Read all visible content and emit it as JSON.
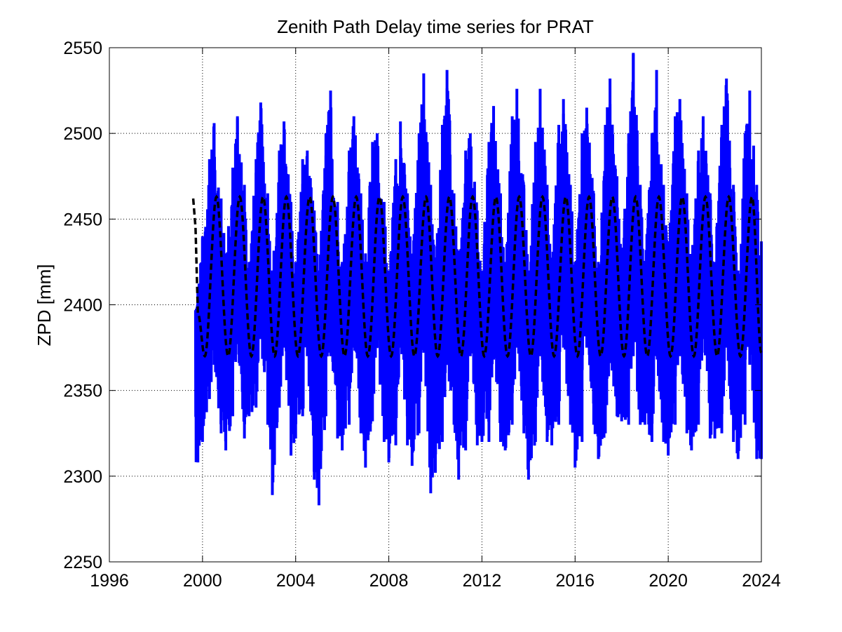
{
  "chart_data": {
    "type": "line",
    "title": "Zenith Path Delay time series for PRAT",
    "xlabel": "",
    "ylabel": "ZPD [mm]",
    "xlim": [
      1996,
      2024
    ],
    "ylim": [
      2250,
      2550
    ],
    "x_ticks": [
      1996,
      2000,
      2004,
      2008,
      2012,
      2016,
      2020,
      2024
    ],
    "y_ticks": [
      2250,
      2300,
      2350,
      2400,
      2450,
      2500,
      2550
    ],
    "grid": true,
    "legend": "none",
    "series": [
      {
        "kind": "observed",
        "color": "#0000ff",
        "x_range": [
          1999.7,
          2024.0
        ],
        "x": [
          1999.8,
          2000.0,
          2000.3,
          2000.5,
          2000.8,
          2001.0,
          2001.3,
          2001.5,
          2001.8,
          2002.0,
          2002.3,
          2002.5,
          2002.8,
          2003.0,
          2003.3,
          2003.5,
          2003.8,
          2004.0,
          2004.3,
          2004.5,
          2004.8,
          2005.0,
          2005.3,
          2005.5,
          2005.8,
          2006.0,
          2006.3,
          2006.5,
          2006.8,
          2007.0,
          2007.3,
          2007.5,
          2007.8,
          2008.0,
          2008.3,
          2008.5,
          2008.8,
          2009.0,
          2009.3,
          2009.5,
          2009.8,
          2010.0,
          2010.3,
          2010.5,
          2010.8,
          2011.0,
          2011.3,
          2011.5,
          2011.8,
          2012.0,
          2012.3,
          2012.5,
          2012.8,
          2013.0,
          2013.3,
          2013.5,
          2013.8,
          2014.0,
          2014.3,
          2014.5,
          2014.8,
          2015.0,
          2015.3,
          2015.5,
          2015.8,
          2016.0,
          2016.3,
          2016.5,
          2016.8,
          2017.0,
          2017.3,
          2017.5,
          2017.8,
          2018.0,
          2018.3,
          2018.5,
          2018.8,
          2019.0,
          2019.3,
          2019.5,
          2019.8,
          2020.0,
          2020.3,
          2020.5,
          2020.8,
          2021.0,
          2021.3,
          2021.5,
          2021.8,
          2022.0,
          2022.3,
          2022.5,
          2022.8,
          2023.0,
          2023.3,
          2023.5,
          2023.8,
          2024.0
        ],
        "max": [
          2410,
          2440,
          2485,
          2506,
          2462,
          2430,
          2480,
          2510,
          2470,
          2425,
          2485,
          2518,
          2465,
          2420,
          2490,
          2507,
          2460,
          2425,
          2485,
          2490,
          2455,
          2420,
          2500,
          2525,
          2460,
          2425,
          2490,
          2510,
          2465,
          2430,
          2495,
          2500,
          2460,
          2420,
          2485,
          2507,
          2465,
          2425,
          2500,
          2535,
          2470,
          2425,
          2505,
          2537,
          2465,
          2420,
          2490,
          2500,
          2455,
          2420,
          2495,
          2516,
          2465,
          2425,
          2510,
          2526,
          2470,
          2420,
          2495,
          2526,
          2470,
          2425,
          2505,
          2520,
          2470,
          2425,
          2500,
          2515,
          2465,
          2425,
          2505,
          2532,
          2475,
          2425,
          2500,
          2547,
          2470,
          2420,
          2500,
          2537,
          2470,
          2425,
          2510,
          2520,
          2465,
          2425,
          2490,
          2510,
          2465,
          2425,
          2505,
          2532,
          2470,
          2420,
          2500,
          2525,
          2470,
          2437
        ],
        "min": [
          2308,
          2320,
          2345,
          2365,
          2325,
          2315,
          2335,
          2380,
          2322,
          2335,
          2340,
          2380,
          2330,
          2289,
          2340,
          2375,
          2312,
          2322,
          2335,
          2370,
          2298,
          2283,
          2335,
          2370,
          2322,
          2315,
          2330,
          2375,
          2325,
          2305,
          2332,
          2375,
          2320,
          2308,
          2318,
          2375,
          2318,
          2306,
          2325,
          2372,
          2290,
          2302,
          2320,
          2366,
          2330,
          2298,
          2315,
          2370,
          2318,
          2320,
          2320,
          2368,
          2320,
          2315,
          2330,
          2375,
          2325,
          2298,
          2320,
          2370,
          2320,
          2318,
          2330,
          2375,
          2330,
          2305,
          2320,
          2375,
          2330,
          2310,
          2325,
          2370,
          2335,
          2332,
          2330,
          2370,
          2330,
          2330,
          2320,
          2370,
          2320,
          2312,
          2330,
          2370,
          2325,
          2315,
          2330,
          2380,
          2322,
          2322,
          2325,
          2375,
          2320,
          2310,
          2330,
          2365,
          2310,
          2310
        ]
      },
      {
        "kind": "model",
        "color": "#000000",
        "style": "dashed",
        "x_range": [
          1999.6,
          2024.0
        ],
        "x": [
          1999.6,
          1999.7,
          1999.8,
          2000.1,
          2000.6,
          2001.1,
          2001.6,
          2002.1,
          2002.6,
          2003.1,
          2003.6,
          2004.1,
          2004.6,
          2005.1,
          2005.6,
          2006.1,
          2006.6,
          2007.1,
          2007.6,
          2008.1,
          2008.6,
          2009.1,
          2009.6,
          2010.1,
          2010.6,
          2011.1,
          2011.6,
          2012.1,
          2012.6,
          2013.1,
          2013.6,
          2014.1,
          2014.6,
          2015.1,
          2015.6,
          2016.1,
          2016.6,
          2017.1,
          2017.6,
          2018.1,
          2018.6,
          2019.1,
          2019.6,
          2020.1,
          2020.6,
          2021.1,
          2021.6,
          2022.1,
          2022.6,
          2023.1,
          2023.6,
          2024.0
        ],
        "y": [
          2462,
          2445,
          2395,
          2370,
          2463,
          2370,
          2463,
          2370,
          2463,
          2370,
          2463,
          2370,
          2463,
          2370,
          2463,
          2370,
          2463,
          2370,
          2463,
          2370,
          2463,
          2370,
          2463,
          2370,
          2463,
          2370,
          2463,
          2370,
          2463,
          2370,
          2463,
          2370,
          2463,
          2370,
          2463,
          2370,
          2463,
          2370,
          2463,
          2370,
          2463,
          2370,
          2463,
          2370,
          2463,
          2370,
          2463,
          2370,
          2463,
          2370,
          2463,
          2372
        ]
      }
    ]
  }
}
